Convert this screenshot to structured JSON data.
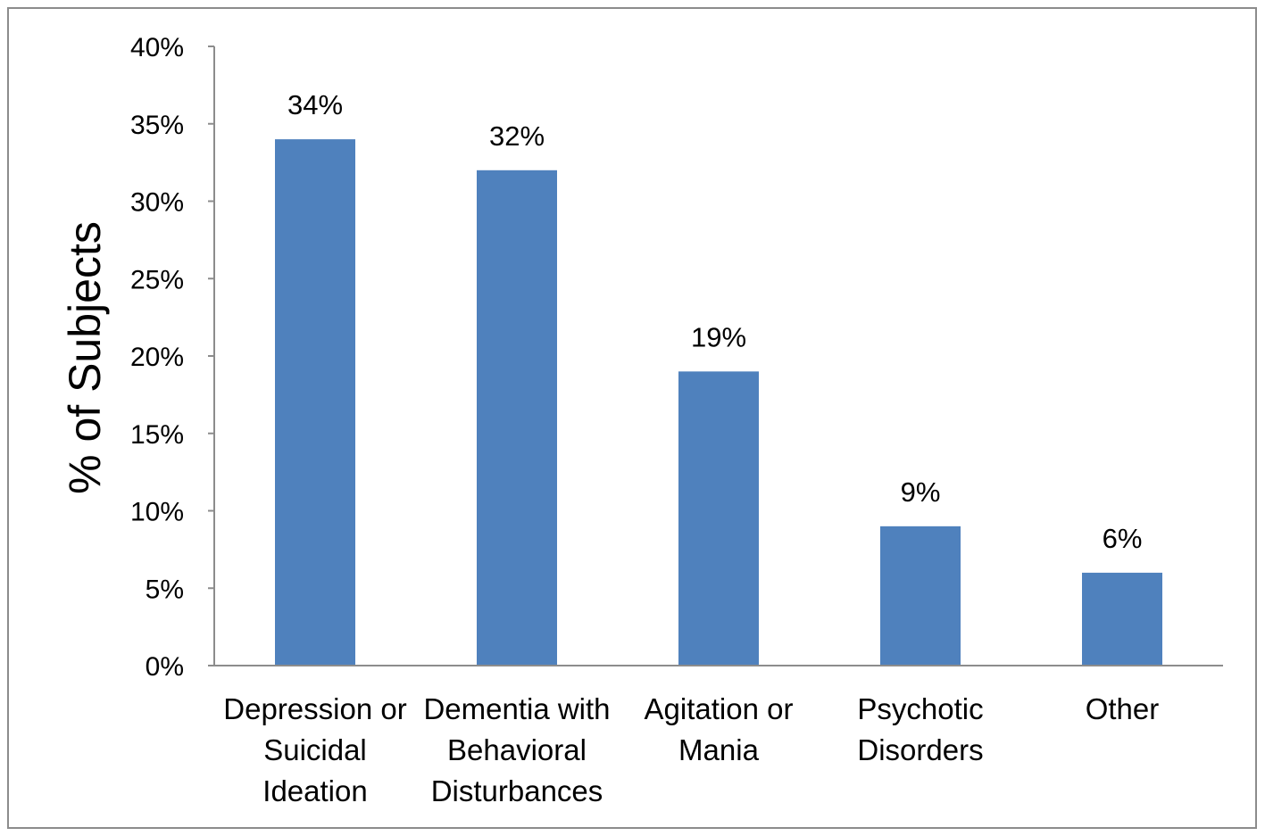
{
  "chart_data": {
    "type": "bar",
    "title": "",
    "xlabel": "",
    "ylabel": "% of Subjects",
    "categories": [
      [
        "Depression or",
        "Suicidal",
        "Ideation"
      ],
      [
        "Dementia with",
        "Behavioral",
        "Disturbances"
      ],
      [
        "Agitation or",
        "Mania"
      ],
      [
        "Psychotic",
        "Disorders"
      ],
      [
        "Other"
      ]
    ],
    "values": [
      34,
      32,
      19,
      9,
      6
    ],
    "data_labels": [
      "34%",
      "32%",
      "19%",
      "9%",
      "6%"
    ],
    "ylim": [
      0,
      40
    ],
    "yticks": [
      0,
      5,
      10,
      15,
      20,
      25,
      30,
      35,
      40
    ],
    "ytick_labels": [
      "0%",
      "5%",
      "10%",
      "15%",
      "20%",
      "25%",
      "30%",
      "35%",
      "40%"
    ],
    "bar_color": "#4F81BD",
    "grid": false,
    "legend": "none"
  }
}
